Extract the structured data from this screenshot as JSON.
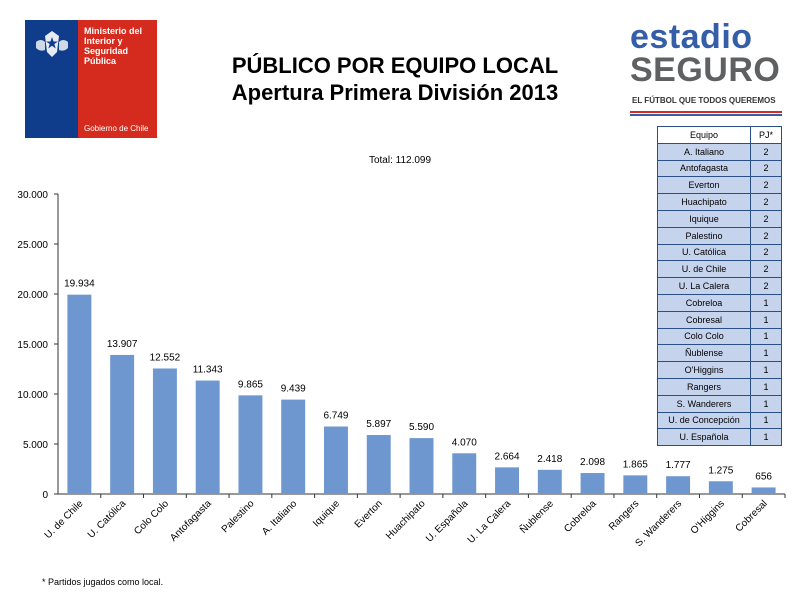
{
  "header": {
    "ministry": "Ministerio del\nInterior y\nSeguridad\nPública",
    "gobierno": "Gobierno de Chile",
    "title_line1": "PÚBLICO POR EQUIPO LOCAL",
    "title_line2": "Apertura Primera División 2013",
    "brand_line1": "estadio",
    "brand_line2": "SEGURO",
    "brand_tagline": "EL FÚTBOL QUE TODOS QUEREMOS"
  },
  "total_label": "Total: 112.099",
  "footnote": "* Partidos jugados como local.",
  "table": {
    "headers": [
      "Equipo",
      "PJ*"
    ],
    "rows": [
      {
        "team": "A. Italiano",
        "pj": "2"
      },
      {
        "team": "Antofagasta",
        "pj": "2"
      },
      {
        "team": "Everton",
        "pj": "2"
      },
      {
        "team": "Huachipato",
        "pj": "2"
      },
      {
        "team": "Iquique",
        "pj": "2"
      },
      {
        "team": "Palestino",
        "pj": "2"
      },
      {
        "team": "U. Católica",
        "pj": "2"
      },
      {
        "team": "U. de Chile",
        "pj": "2"
      },
      {
        "team": "U. La Calera",
        "pj": "2"
      },
      {
        "team": "Cobreloa",
        "pj": "1"
      },
      {
        "team": "Cobresal",
        "pj": "1"
      },
      {
        "team": "Colo Colo",
        "pj": "1"
      },
      {
        "team": "Ñublense",
        "pj": "1"
      },
      {
        "team": "O'Higgins",
        "pj": "1"
      },
      {
        "team": "Rangers",
        "pj": "1"
      },
      {
        "team": "S. Wanderers",
        "pj": "1"
      },
      {
        "team": "U. de Concepción",
        "pj": "1"
      },
      {
        "team": "U. Española",
        "pj": "1"
      }
    ]
  },
  "colors": {
    "bar": "#6f97cf",
    "gov_blue": "#0f3d8c",
    "gov_red": "#d52b1e",
    "brand_blue": "#355ea9",
    "table_fill": "#c6d3ec"
  },
  "chart_data": {
    "type": "bar",
    "categories": [
      "U. de Chile",
      "U. Católica",
      "Colo Colo",
      "Antofagasta",
      "Palestino",
      "A. Italiano",
      "Iquique",
      "Everton",
      "Huachipato",
      "U. Española",
      "U. La Calera",
      "Ñublense",
      "Cobreloa",
      "Rangers",
      "S. Wanderers",
      "O'Higgins",
      "Cobresal"
    ],
    "values": [
      19934,
      13907,
      12552,
      11343,
      9865,
      9439,
      6749,
      5897,
      5590,
      4070,
      2664,
      2418,
      2098,
      1865,
      1777,
      1275,
      656
    ],
    "value_labels": [
      "19.934",
      "13.907",
      "12.552",
      "11.343",
      "9.865",
      "9.439",
      "6.749",
      "5.897",
      "5.590",
      "4.070",
      "2.664",
      "2.418",
      "2.098",
      "1.865",
      "1.777",
      "1.275",
      "656"
    ],
    "ylim": [
      0,
      30000
    ],
    "yticks": [
      0,
      5000,
      10000,
      15000,
      20000,
      25000,
      30000
    ],
    "ytick_labels": [
      "0",
      "5.000",
      "10.000",
      "15.000",
      "20.000",
      "25.000",
      "30.000"
    ],
    "grid": false,
    "title": "",
    "xlabel": "",
    "ylabel": ""
  }
}
